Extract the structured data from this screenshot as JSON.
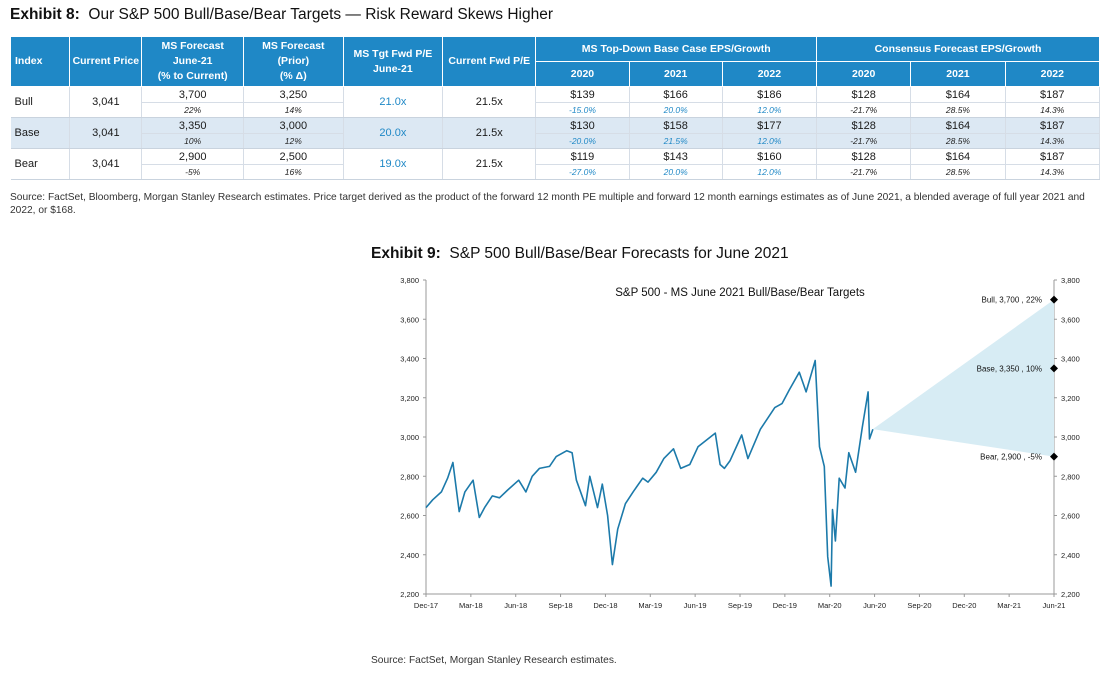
{
  "exhibit8": {
    "title_bold": "Exhibit 8:",
    "title_text": "Our S&P 500 Bull/Base/Bear Targets — Risk Reward Skews Higher",
    "headers": {
      "index": "Index",
      "current_price": "Current Price",
      "ms_forecast": [
        "MS Forecast",
        "June-21",
        "(% to Current)"
      ],
      "ms_forecast_prior": [
        "MS Forecast",
        "(Prior)",
        "(% Δ)"
      ],
      "ms_tgt": [
        "MS Tgt Fwd P/E",
        "June-21"
      ],
      "current_fwd_pe": "Current Fwd P/E",
      "ms_eps_group": "MS Top-Down Base Case EPS/Growth",
      "consensus_group": "Consensus Forecast EPS/Growth",
      "years": [
        "2020",
        "2021",
        "2022"
      ]
    },
    "rows": [
      {
        "label": "Bull",
        "price": "3,041",
        "fc": "3,700",
        "fc_pct": "22%",
        "prior": "3,250",
        "prior_pct": "14%",
        "tgt_pe": "21.0x",
        "cur_pe": "21.5x",
        "ms_eps": [
          "$139",
          "$166",
          "$186"
        ],
        "ms_g": [
          "-15.0%",
          "20.0%",
          "12.0%"
        ],
        "con_eps": [
          "$128",
          "$164",
          "$187"
        ],
        "con_g": [
          "-21.7%",
          "28.5%",
          "14.3%"
        ]
      },
      {
        "label": "Base",
        "price": "3,041",
        "fc": "3,350",
        "fc_pct": "10%",
        "prior": "3,000",
        "prior_pct": "12%",
        "tgt_pe": "20.0x",
        "cur_pe": "21.5x",
        "ms_eps": [
          "$130",
          "$158",
          "$177"
        ],
        "ms_g": [
          "-20.0%",
          "21.5%",
          "12.0%"
        ],
        "con_eps": [
          "$128",
          "$164",
          "$187"
        ],
        "con_g": [
          "-21.7%",
          "28.5%",
          "14.3%"
        ]
      },
      {
        "label": "Bear",
        "price": "3,041",
        "fc": "2,900",
        "fc_pct": "-5%",
        "prior": "2,500",
        "prior_pct": "16%",
        "tgt_pe": "19.0x",
        "cur_pe": "21.5x",
        "ms_eps": [
          "$119",
          "$143",
          "$160"
        ],
        "ms_g": [
          "-27.0%",
          "20.0%",
          "12.0%"
        ],
        "con_eps": [
          "$128",
          "$164",
          "$187"
        ],
        "con_g": [
          "-21.7%",
          "28.5%",
          "14.3%"
        ]
      }
    ],
    "source": "Source: FactSet, Bloomberg, Morgan Stanley Research estimates. Price target derived as the product of the forward 12 month PE multiple and forward 12 month earnings estimates as of June 2021, a blended average of full year 2021 and 2022, or $168."
  },
  "exhibit9": {
    "title_bold": "Exhibit 9:",
    "title_text": "S&P 500 Bull/Base/Bear Forecasts for June 2021",
    "source": "Source: FactSet, Morgan Stanley Research estimates."
  },
  "colors": {
    "header_blue": "#1f88c6",
    "line": "#1c7aaa",
    "cone": "#d7ecf4",
    "base_row": "#dce8f3"
  },
  "chart_data": {
    "type": "line",
    "title": "S&P 500 - MS June 2021 Bull/Base/Bear Targets",
    "xlabel": "",
    "ylabel": "",
    "x_ticks": [
      "Dec-17",
      "Mar-18",
      "Jun-18",
      "Sep-18",
      "Dec-18",
      "Mar-19",
      "Jun-19",
      "Sep-19",
      "Dec-19",
      "Mar-20",
      "Jun-20",
      "Sep-20",
      "Dec-20",
      "Mar-21",
      "Jun-21"
    ],
    "ylim": [
      2200,
      3800
    ],
    "y_ticks": [
      2200,
      2400,
      2600,
      2800,
      3000,
      3200,
      3400,
      3600,
      3800
    ],
    "y_tick_labels": [
      "2,200",
      "2,400",
      "2,600",
      "2,800",
      "3,000",
      "3,200",
      "3,400",
      "3,600",
      "3,800"
    ],
    "secondary_y_axis": true,
    "grid": false,
    "series": [
      {
        "x": [
          "2017-12-01",
          "2017-12-15",
          "2018-01-02",
          "2018-01-15",
          "2018-01-26",
          "2018-02-08",
          "2018-02-20",
          "2018-03-09",
          "2018-03-22",
          "2018-04-02",
          "2018-04-18",
          "2018-05-03",
          "2018-05-20",
          "2018-06-12",
          "2018-06-27",
          "2018-07-10",
          "2018-07-25",
          "2018-08-15",
          "2018-08-29",
          "2018-09-20",
          "2018-10-01",
          "2018-10-10",
          "2018-10-29",
          "2018-11-07",
          "2018-11-23",
          "2018-12-03",
          "2018-12-14",
          "2018-12-24",
          "2019-01-04",
          "2019-01-20",
          "2019-02-05",
          "2019-02-25",
          "2019-03-08",
          "2019-03-25",
          "2019-04-10",
          "2019-04-30",
          "2019-05-15",
          "2019-06-03",
          "2019-06-20",
          "2019-07-26",
          "2019-08-05",
          "2019-08-14",
          "2019-08-26",
          "2019-09-19",
          "2019-10-02",
          "2019-10-28",
          "2019-11-27",
          "2019-12-12",
          "2019-12-27",
          "2020-01-17",
          "2020-01-31",
          "2020-02-19",
          "2020-02-28",
          "2020-03-09",
          "2020-03-16",
          "2020-03-23",
          "2020-03-26",
          "2020-04-01",
          "2020-04-09",
          "2020-04-21",
          "2020-04-29",
          "2020-05-13",
          "2020-05-27",
          "2020-06-08",
          "2020-06-11",
          "2020-06-18"
        ],
        "values": [
          2640,
          2680,
          2720,
          2790,
          2870,
          2620,
          2720,
          2780,
          2590,
          2640,
          2700,
          2690,
          2730,
          2780,
          2720,
          2800,
          2840,
          2850,
          2900,
          2930,
          2920,
          2780,
          2650,
          2800,
          2640,
          2760,
          2600,
          2350,
          2530,
          2660,
          2720,
          2790,
          2770,
          2820,
          2890,
          2940,
          2840,
          2860,
          2950,
          3020,
          2860,
          2840,
          2880,
          3010,
          2890,
          3040,
          3150,
          3170,
          3240,
          3330,
          3230,
          3390,
          2950,
          2850,
          2390,
          2240,
          2630,
          2470,
          2790,
          2740,
          2920,
          2820,
          3050,
          3230,
          2990,
          3040
        ]
      }
    ],
    "cone": {
      "start": {
        "x": "2020-06-18",
        "y": 3040
      },
      "end_x": "2021-06-30",
      "upper": 3700,
      "lower": 2900
    },
    "annotations": [
      {
        "label": "Bull, 3,700 , 22%",
        "x": "2021-06-30",
        "y": 3700
      },
      {
        "label": "Base, 3,350 , 10%",
        "x": "2021-06-30",
        "y": 3350
      },
      {
        "label": "Bear, 2,900 , -5%",
        "x": "2021-06-30",
        "y": 2900
      }
    ]
  }
}
